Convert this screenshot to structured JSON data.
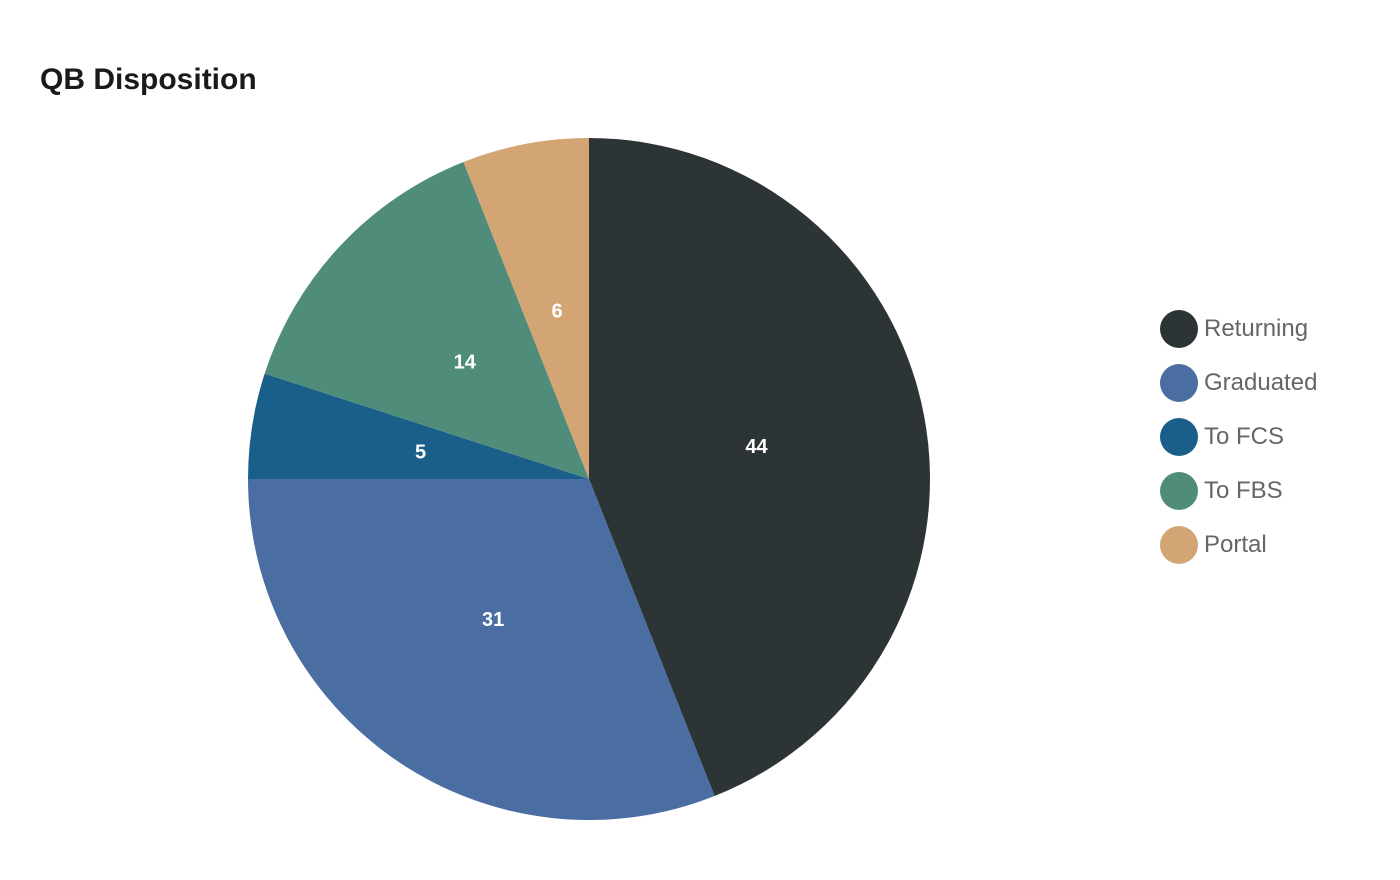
{
  "chart_data": {
    "type": "pie",
    "title": "QB Disposition",
    "legend_position": "right",
    "slices": [
      {
        "label": "Returning",
        "value": 44,
        "color": "#2d3436"
      },
      {
        "label": "Graduated",
        "value": 31,
        "color": "#4a6da2"
      },
      {
        "label": "To FCS",
        "value": 5,
        "color": "#1a5f8a"
      },
      {
        "label": "To FBS",
        "value": 14,
        "color": "#4f8c7a"
      },
      {
        "label": "Portal",
        "value": 6,
        "color": "#d4a574"
      }
    ]
  }
}
